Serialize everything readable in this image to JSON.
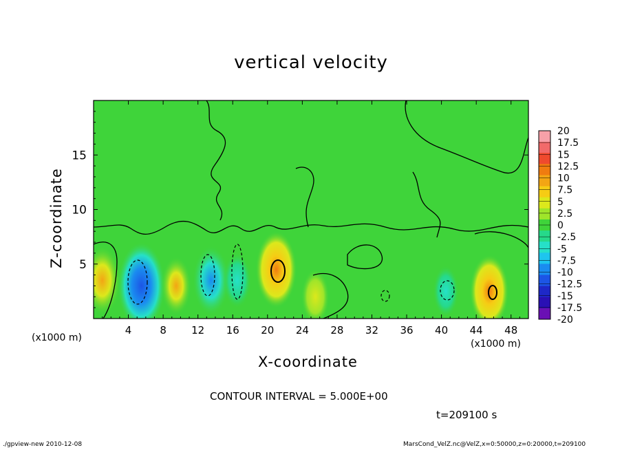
{
  "chart_data": {
    "type": "heatmap",
    "title": "vertical velocity",
    "xlabel": "X-coordinate",
    "ylabel": "Z-coordinate",
    "x_unit_left": "(x1000 m)",
    "x_unit_right": "(x1000 m)",
    "x_ticks": [
      "4",
      "8",
      "12",
      "16",
      "20",
      "24",
      "28",
      "32",
      "36",
      "40",
      "44",
      "48"
    ],
    "x_tick_values": [
      4,
      8,
      12,
      16,
      20,
      24,
      28,
      32,
      36,
      40,
      44,
      48
    ],
    "y_ticks": [
      "5",
      "10",
      "15"
    ],
    "y_tick_values": [
      5,
      10,
      15
    ],
    "xlim": [
      0,
      50
    ],
    "ylim": [
      0,
      20
    ],
    "colorbar": {
      "labels": [
        "20",
        "17.5",
        "15",
        "12.5",
        "10",
        "7.5",
        "5",
        "2.5",
        "0",
        "-2.5",
        "-5",
        "-7.5",
        "-10",
        "-12.5",
        "-15",
        "-17.5",
        "-20"
      ],
      "colors": [
        "#f7a0a8",
        "#f26a6a",
        "#ef4a2e",
        "#f07c10",
        "#f3a514",
        "#f6cc14",
        "#dce81c",
        "#9fe52a",
        "#3fd43a",
        "#26d98a",
        "#26e0c8",
        "#1ec5ee",
        "#1a8cf0",
        "#1c55e6",
        "#1e28c8",
        "#2a10b4",
        "#6a10b4"
      ]
    },
    "background_value": 0,
    "features": [
      {
        "x": 1,
        "z": 3.5,
        "w": 8
      },
      {
        "x": 5.5,
        "z": 3,
        "w": -13
      },
      {
        "x": 9.5,
        "z": 3,
        "w": 5
      },
      {
        "x": 13.5,
        "z": 3.5,
        "w": -8
      },
      {
        "x": 16.5,
        "z": 3.5,
        "w": -4
      },
      {
        "x": 21,
        "z": 4.5,
        "w": 10
      },
      {
        "x": 25.5,
        "z": 2,
        "w": 4
      },
      {
        "x": 40.5,
        "z": 2.5,
        "w": -3
      },
      {
        "x": 45.5,
        "z": 2.5,
        "w": 9
      }
    ],
    "contour_interval": "5.000E+00"
  },
  "contour_text": "CONTOUR INTERVAL = 5.000E+00",
  "time_text": "t=209100 s",
  "footer_left": "./gpview-new  2010-12-08",
  "footer_right": "MarsCond_VelZ.nc@VelZ,x=0:50000,z=0:20000,t=209100"
}
